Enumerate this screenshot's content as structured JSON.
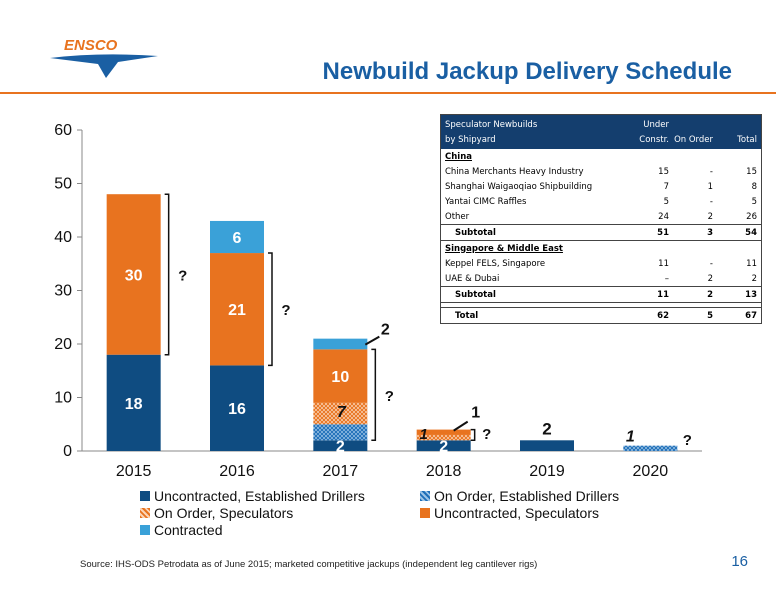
{
  "header": {
    "logo_text": "ENSCO",
    "title": "Newbuild Jackup Delivery Schedule"
  },
  "colors": {
    "uncontracted_established": "#0f4c81",
    "on_order_established": "#1e6fb8",
    "on_order_speculators": "#f4b183",
    "uncontracted_speculators": "#e8731f",
    "contracted": "#3aa1d8",
    "title": "#1a5fa3",
    "rule": "#e8731f"
  },
  "chart_data": {
    "type": "bar",
    "stacked": true,
    "categories": [
      "2015",
      "2016",
      "2017",
      "2018",
      "2019",
      "2020"
    ],
    "ylim": [
      0,
      60
    ],
    "yticks": [
      "0",
      "10",
      "20",
      "30",
      "40",
      "50",
      "60"
    ],
    "series": [
      {
        "name": "Uncontracted, Established Drillers",
        "values": [
          18,
          16,
          2,
          2,
          2,
          0
        ]
      },
      {
        "name": "On Order, Established Drillers",
        "values": [
          0,
          0,
          3,
          0,
          0,
          1
        ]
      },
      {
        "name": "On Order, Speculators",
        "values": [
          0,
          0,
          4,
          1,
          0,
          0
        ]
      },
      {
        "name": "Uncontracted, Speculators",
        "values": [
          30,
          21,
          10,
          1,
          0,
          0
        ]
      },
      {
        "name": "Contracted",
        "values": [
          0,
          6,
          2,
          0,
          0,
          0
        ]
      }
    ],
    "data_labels": {
      "uncontracted_established": [
        "18",
        "16",
        "2",
        "2",
        "2",
        ""
      ],
      "uncontracted_speculators": [
        "30",
        "21",
        "10",
        "",
        "",
        ""
      ],
      "contracted": [
        "",
        "6",
        "",
        "",
        "",
        ""
      ],
      "callouts": [
        "7",
        "1",
        "1",
        "2",
        "1"
      ],
      "question_marks": [
        "?",
        "?",
        "?",
        "?",
        "?"
      ]
    },
    "legend": [
      "Uncontracted, Established Drillers",
      "On Order, Established Drillers",
      "On Order, Speculators",
      "Uncontracted, Speculators",
      "Contracted"
    ]
  },
  "table": {
    "header": {
      "col0a": "Speculator Newbuilds",
      "col0b": "by Shipyard",
      "col1a": "Under",
      "col1b": "Constr.",
      "col2": "On Order",
      "col3": "Total"
    },
    "sections": [
      {
        "name": "China",
        "rows": [
          {
            "name": "China Merchants Heavy Industry",
            "under": "15",
            "order": "-",
            "total": "15"
          },
          {
            "name": "Shanghai Waigaoqiao Shipbuilding",
            "under": "7",
            "order": "1",
            "total": "8"
          },
          {
            "name": "Yantai CIMC Raffles",
            "under": "5",
            "order": "-",
            "total": "5"
          },
          {
            "name": "Other",
            "under": "24",
            "order": "2",
            "total": "26"
          }
        ],
        "subtotal": {
          "name": "Subtotal",
          "under": "51",
          "order": "3",
          "total": "54"
        }
      },
      {
        "name": "Singapore & Middle East",
        "rows": [
          {
            "name": "Keppel FELS, Singapore",
            "under": "11",
            "order": "-",
            "total": "11"
          },
          {
            "name": "UAE & Dubai",
            "under": "–",
            "order": "2",
            "total": "2"
          }
        ],
        "subtotal": {
          "name": "Subtotal",
          "under": "11",
          "order": "2",
          "total": "13"
        }
      }
    ],
    "total": {
      "name": "Total",
      "under": "62",
      "order": "5",
      "total": "67"
    }
  },
  "footer": {
    "source": "Source: IHS-ODS Petrodata as of June 2015; marketed competitive jackups (independent leg cantilever rigs)",
    "page_number": "16"
  }
}
